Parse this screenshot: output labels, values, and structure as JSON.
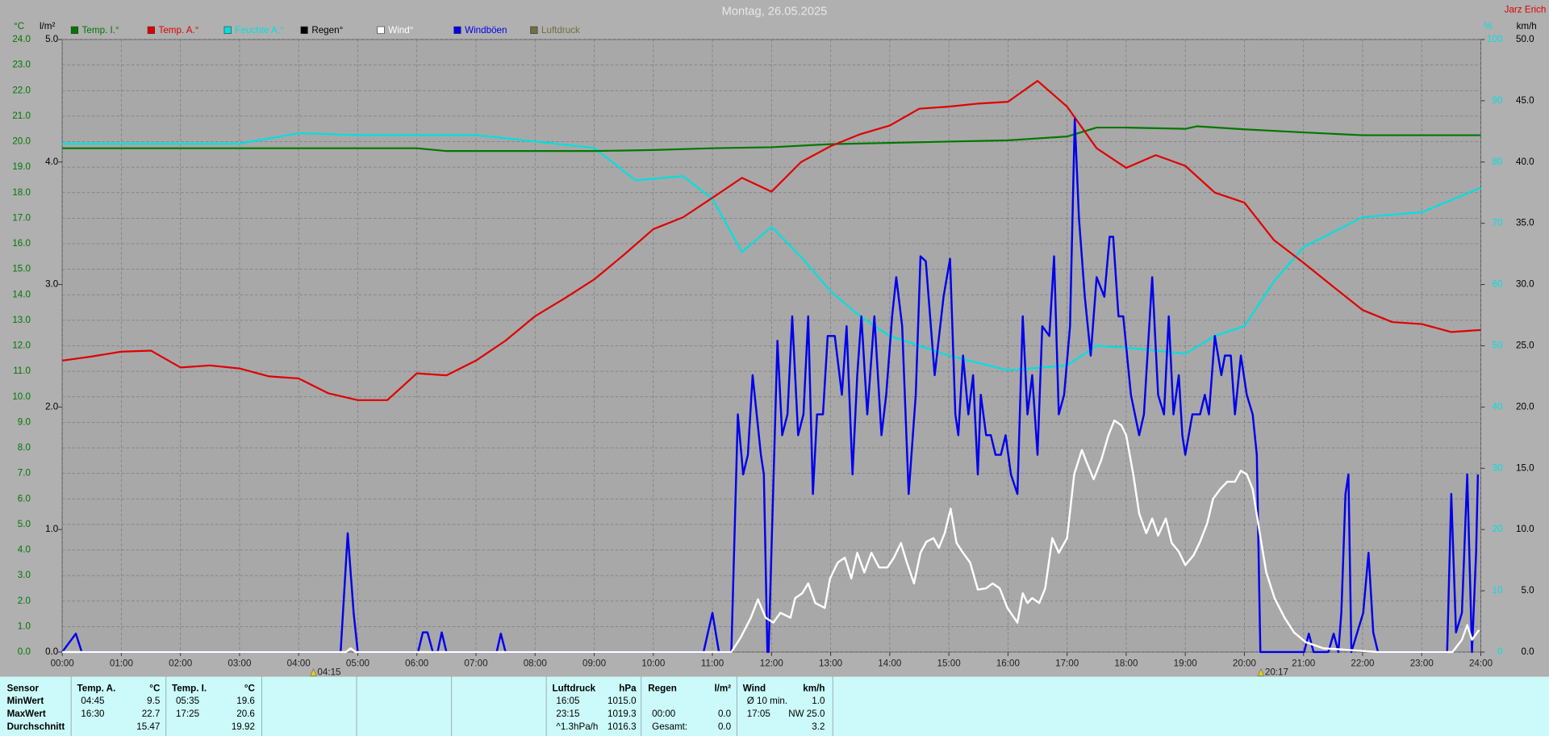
{
  "chart_data": {
    "type": "line",
    "title": "Montag, 26.05.2025",
    "owner": "Jarz Erich",
    "axis_units": {
      "temp": "°C",
      "rain": "l/m²",
      "humidity": "%",
      "wind": "km/h"
    },
    "grid": true,
    "xlim": [
      0,
      24
    ],
    "xticks": [
      {
        "value": 0,
        "label": "00:00"
      },
      {
        "value": 1,
        "label": "01:00"
      },
      {
        "value": 2,
        "label": "02:00"
      },
      {
        "value": 3,
        "label": "03:00"
      },
      {
        "value": 4,
        "label": "04:00"
      },
      {
        "value": 5,
        "label": "05:00"
      },
      {
        "value": 6,
        "label": "06:00"
      },
      {
        "value": 7,
        "label": "07:00"
      },
      {
        "value": 8,
        "label": "08:00"
      },
      {
        "value": 9,
        "label": "09:00"
      },
      {
        "value": 10,
        "label": "10:00"
      },
      {
        "value": 11,
        "label": "11:00"
      },
      {
        "value": 12,
        "label": "12:00"
      },
      {
        "value": 13,
        "label": "13:00"
      },
      {
        "value": 14,
        "label": "14:00"
      },
      {
        "value": 15,
        "label": "15:00"
      },
      {
        "value": 16,
        "label": "16:00"
      },
      {
        "value": 17,
        "label": "17:00"
      },
      {
        "value": 18,
        "label": "18:00"
      },
      {
        "value": 19,
        "label": "19:00"
      },
      {
        "value": 20,
        "label": "20:00"
      },
      {
        "value": 21,
        "label": "21:00"
      },
      {
        "value": 22,
        "label": "22:00"
      },
      {
        "value": 23,
        "label": "23:00"
      },
      {
        "value": 24,
        "label": "24:00"
      }
    ],
    "ylim": [
      0,
      24
    ],
    "yticks": [
      {
        "value": 0,
        "label": "0.0"
      },
      {
        "value": 1,
        "label": "1.0"
      },
      {
        "value": 2,
        "label": "2.0"
      },
      {
        "value": 3,
        "label": "3.0"
      },
      {
        "value": 4,
        "label": "4.0"
      },
      {
        "value": 5,
        "label": "5.0"
      },
      {
        "value": 6,
        "label": "6.0"
      },
      {
        "value": 7,
        "label": "7.0"
      },
      {
        "value": 8,
        "label": "8.0"
      },
      {
        "value": 9,
        "label": "9.0"
      },
      {
        "value": 10,
        "label": "10.0"
      },
      {
        "value": 11,
        "label": "11.0"
      },
      {
        "value": 12,
        "label": "12.0"
      },
      {
        "value": 13,
        "label": "13.0"
      },
      {
        "value": 14,
        "label": "14.0"
      },
      {
        "value": 15,
        "label": "15.0"
      },
      {
        "value": 16,
        "label": "16.0"
      },
      {
        "value": 17,
        "label": "17.0"
      },
      {
        "value": 18,
        "label": "18.0"
      },
      {
        "value": 19,
        "label": "19.0"
      },
      {
        "value": 20,
        "label": "20.0"
      },
      {
        "value": 21,
        "label": "21.0"
      },
      {
        "value": 22,
        "label": "22.0"
      },
      {
        "value": 23,
        "label": "23.0"
      },
      {
        "value": 24,
        "label": "24.0"
      }
    ],
    "y2lim": [
      0,
      5
    ],
    "y2ticks": [
      {
        "value": 0,
        "label": "0.0"
      },
      {
        "value": 1,
        "label": "1.0"
      },
      {
        "value": 2,
        "label": "2.0"
      },
      {
        "value": 3,
        "label": "3.0"
      },
      {
        "value": 4,
        "label": "4.0"
      },
      {
        "value": 5,
        "label": "5.0"
      }
    ],
    "y3lim": [
      0,
      100
    ],
    "y3ticks": [
      0,
      10,
      20,
      30,
      40,
      50,
      60,
      70,
      80,
      90,
      100
    ],
    "y4lim": [
      0,
      50
    ],
    "y4ticks": [
      {
        "value": 0,
        "label": "0.0"
      },
      {
        "value": 5,
        "label": "5.0"
      },
      {
        "value": 10,
        "label": "10.0"
      },
      {
        "value": 15,
        "label": "15.0"
      },
      {
        "value": 20,
        "label": "20.0"
      },
      {
        "value": 25,
        "label": "25.0"
      },
      {
        "value": 30,
        "label": "30.0"
      },
      {
        "value": 35,
        "label": "35.0"
      },
      {
        "value": 40,
        "label": "40.0"
      },
      {
        "value": 45,
        "label": "45.0"
      },
      {
        "value": 50,
        "label": "50.0"
      }
    ],
    "markers": [
      {
        "value": 4.25,
        "label": "04:15"
      },
      {
        "value": 20.28,
        "label": "20:17"
      }
    ],
    "series": [
      {
        "name": "Temp. I.°",
        "color": "#007800",
        "axis": "y",
        "x": [
          0,
          1,
          2,
          3,
          4,
          5,
          6,
          6.5,
          7,
          8,
          9,
          10,
          11,
          12,
          13,
          14,
          15,
          16,
          17,
          17.5,
          18,
          19,
          19.2,
          20,
          21,
          22,
          23,
          24
        ],
        "values": [
          19.74,
          19.74,
          19.74,
          19.74,
          19.74,
          19.74,
          19.74,
          19.63,
          19.63,
          19.63,
          19.63,
          19.67,
          19.74,
          19.78,
          19.9,
          19.95,
          20.0,
          20.05,
          20.2,
          20.55,
          20.55,
          20.5,
          20.6,
          20.48,
          20.36,
          20.25,
          20.25,
          20.25
        ]
      },
      {
        "name": "Temp. A.°",
        "color": "#e00000",
        "axis": "y",
        "x": [
          0,
          0.5,
          1,
          1.5,
          2,
          2.5,
          3,
          3.5,
          4,
          4.5,
          5,
          5.5,
          6,
          6.5,
          7,
          7.5,
          8,
          8.5,
          9,
          9.5,
          10,
          10.5,
          11,
          11.5,
          12,
          12.5,
          13,
          13.5,
          14,
          14.5,
          15,
          15.5,
          16,
          16.5,
          17,
          17.5,
          18,
          18.5,
          19,
          19.5,
          20,
          20.5,
          21,
          21.5,
          22,
          22.5,
          23,
          23.5,
          24
        ],
        "values": [
          11.42,
          11.58,
          11.77,
          11.81,
          11.15,
          11.23,
          11.11,
          10.8,
          10.72,
          10.14,
          9.87,
          9.87,
          10.92,
          10.84,
          11.42,
          12.2,
          13.16,
          13.86,
          14.6,
          15.56,
          16.57,
          17.03,
          17.8,
          18.58,
          18.04,
          19.2,
          19.82,
          20.29,
          20.63,
          21.29,
          21.37,
          21.49,
          21.56,
          22.38,
          21.37,
          19.74,
          18.97,
          19.47,
          19.05,
          18.0,
          17.61,
          16.14,
          15.25,
          14.32,
          13.4,
          12.93,
          12.85,
          12.54,
          12.62
        ]
      },
      {
        "name": "Feuchte A.°",
        "color": "#00e0e0",
        "axis": "y3",
        "x": [
          0,
          3,
          4,
          5,
          7,
          9,
          9.7,
          10.5,
          11,
          11.5,
          12,
          12.5,
          13,
          13.5,
          14,
          15,
          16,
          17,
          17.5,
          18,
          19,
          19.5,
          20,
          20.5,
          21,
          22,
          23,
          24
        ],
        "values": [
          83,
          83,
          84.7,
          84.4,
          84.4,
          82.3,
          77,
          77.7,
          74,
          65.3,
          69.4,
          64.5,
          58.9,
          54.8,
          51.6,
          48.4,
          46,
          46.8,
          50,
          49.7,
          48.7,
          51.6,
          53.2,
          60.5,
          66.1,
          71,
          71.8,
          75.8
        ]
      },
      {
        "name": "Regen°",
        "color": "#000000",
        "axis": "y2"
      },
      {
        "name": "Wind°",
        "color": "#ffffff",
        "axis": "y4",
        "x": [
          0,
          4.8,
          4.88,
          4.96,
          11.32,
          11.48,
          11.65,
          11.77,
          11.9,
          12.03,
          12.15,
          12.32,
          12.4,
          12.52,
          12.62,
          12.74,
          12.9,
          12.99,
          13.12,
          13.24,
          13.35,
          13.45,
          13.57,
          13.69,
          13.82,
          13.96,
          14.07,
          14.19,
          14.29,
          14.41,
          14.52,
          14.62,
          14.74,
          14.83,
          14.93,
          15.03,
          15.13,
          15.24,
          15.36,
          15.49,
          15.63,
          15.74,
          15.86,
          15.99,
          16.16,
          16.25,
          16.33,
          16.41,
          16.53,
          16.63,
          16.75,
          16.86,
          17.0,
          17.12,
          17.25,
          17.33,
          17.45,
          17.58,
          17.7,
          17.8,
          17.92,
          18.0,
          18.12,
          18.22,
          18.34,
          18.44,
          18.54,
          18.67,
          18.77,
          18.89,
          19.0,
          19.14,
          19.25,
          19.37,
          19.47,
          19.59,
          19.71,
          19.84,
          19.94,
          20.04,
          20.14,
          20.26,
          20.37,
          20.51,
          20.68,
          20.84,
          21.04,
          21.34,
          21.68,
          22.26,
          23.52,
          23.68,
          23.77,
          23.85,
          23.97
        ],
        "values": [
          0,
          0,
          0.3,
          0,
          0,
          1.2,
          2.8,
          4.3,
          2.8,
          2.4,
          3.2,
          2.8,
          4.4,
          4.8,
          5.6,
          4.0,
          3.6,
          6.0,
          7.3,
          7.7,
          6.0,
          8.1,
          6.5,
          8.1,
          6.9,
          6.9,
          7.7,
          8.9,
          7.3,
          5.6,
          8.1,
          9.0,
          9.3,
          8.5,
          9.7,
          11.7,
          8.9,
          8.1,
          7.3,
          5.1,
          5.2,
          5.6,
          5.2,
          3.6,
          2.4,
          4.8,
          4.0,
          4.4,
          4.0,
          5.2,
          9.3,
          8.1,
          9.3,
          14.5,
          16.5,
          15.5,
          14.1,
          15.7,
          17.7,
          18.9,
          18.5,
          17.7,
          14.5,
          11.3,
          9.7,
          10.9,
          9.5,
          10.9,
          8.9,
          8.2,
          7.1,
          7.9,
          9.0,
          10.5,
          12.5,
          13.3,
          13.9,
          13.9,
          14.8,
          14.5,
          13.3,
          9.7,
          6.5,
          4.4,
          2.8,
          1.6,
          0.8,
          0.3,
          0.2,
          0,
          0,
          1.0,
          2.2,
          1.0,
          1.8
        ]
      },
      {
        "name": "Windböen",
        "color": "#0000ee",
        "axis": "y4",
        "x": [
          0,
          0.23,
          0.33,
          4.71,
          4.83,
          4.93,
          5.0,
          6.02,
          6.1,
          6.18,
          6.27,
          6.35,
          6.42,
          6.5,
          7.35,
          7.42,
          7.5,
          10.85,
          11.0,
          11.11,
          11.32,
          11.43,
          11.52,
          11.6,
          11.68,
          11.82,
          11.87,
          11.93,
          11.95,
          12.1,
          12.18,
          12.27,
          12.35,
          12.45,
          12.54,
          12.62,
          12.7,
          12.77,
          12.87,
          12.95,
          13.07,
          13.19,
          13.27,
          13.37,
          13.45,
          13.52,
          13.62,
          13.74,
          13.86,
          13.94,
          14.04,
          14.11,
          14.21,
          14.32,
          14.44,
          14.52,
          14.61,
          14.76,
          14.91,
          15.02,
          15.11,
          15.16,
          15.24,
          15.33,
          15.41,
          15.49,
          15.54,
          15.63,
          15.71,
          15.79,
          15.88,
          15.96,
          16.05,
          16.16,
          16.25,
          16.33,
          16.41,
          16.5,
          16.58,
          16.7,
          16.78,
          16.86,
          16.95,
          17.05,
          17.13,
          17.2,
          17.3,
          17.4,
          17.5,
          17.63,
          17.72,
          17.78,
          17.87,
          17.95,
          18.08,
          18.22,
          18.3,
          18.44,
          18.54,
          18.64,
          18.72,
          18.8,
          18.89,
          18.95,
          19.0,
          19.12,
          19.25,
          19.33,
          19.4,
          19.5,
          19.61,
          19.67,
          19.77,
          19.84,
          19.94,
          20.04,
          20.14,
          20.21,
          20.27,
          21.01,
          21.09,
          21.17,
          21.42,
          21.51,
          21.59,
          21.64,
          21.71,
          21.76,
          21.81,
          22.01,
          22.1,
          22.18,
          22.26,
          23.43,
          23.5,
          23.58,
          23.68,
          23.77,
          23.85,
          23.92,
          23.95
        ],
        "values": [
          0,
          1.5,
          0,
          0,
          9.7,
          3.2,
          0,
          0,
          1.6,
          1.6,
          0,
          0,
          1.6,
          0,
          0,
          1.5,
          0,
          0,
          3.2,
          0,
          0,
          19.4,
          14.5,
          16.1,
          22.6,
          16.1,
          14.5,
          0,
          0,
          25.4,
          17.7,
          19.4,
          27.4,
          17.7,
          19.4,
          27.4,
          12.9,
          19.4,
          19.4,
          25.8,
          25.8,
          21,
          26.6,
          14.5,
          22.6,
          27.4,
          19.4,
          27.4,
          17.7,
          21,
          27.4,
          30.6,
          26.6,
          12.9,
          21,
          32.3,
          31.9,
          22.6,
          29,
          32.1,
          19.4,
          17.7,
          24.2,
          19.4,
          22.6,
          14.5,
          21,
          17.7,
          17.7,
          16.1,
          16.1,
          17.7,
          14.5,
          12.9,
          27.4,
          19.4,
          22.6,
          16.1,
          26.6,
          25.8,
          32.3,
          19.4,
          21,
          26.6,
          43.5,
          35.5,
          29,
          24.2,
          30.6,
          29,
          33.9,
          33.9,
          27.4,
          27.4,
          21,
          17.7,
          19.4,
          30.6,
          21,
          19.4,
          27.4,
          19.4,
          22.6,
          17.7,
          16.1,
          19.4,
          19.4,
          21,
          19.4,
          25.8,
          22.6,
          24.2,
          24.2,
          19.4,
          24.2,
          21,
          19.4,
          16.1,
          0,
          0,
          1.5,
          0,
          0,
          1.5,
          0,
          3.2,
          12.9,
          14.5,
          0,
          3.2,
          8.1,
          1.6,
          0,
          0,
          12.9,
          1.6,
          3.2,
          14.5,
          0,
          8.1,
          14.5
        ]
      },
      {
        "name": "Luftdruck",
        "color": "#707040",
        "axis": "y"
      }
    ]
  },
  "table": {
    "header": [
      "Sensor",
      "Temp. A.",
      "°C",
      "Temp. I.",
      "°C",
      "Luftdruck",
      "hPa",
      "Regen",
      "l/m²",
      "Wind",
      "km/h"
    ],
    "rows": [
      [
        "MinWert",
        "04:45",
        "9.5",
        "05:35",
        "19.6",
        "16:05",
        "1015.0",
        null,
        null,
        "Ø 10 min.",
        "1.0"
      ],
      [
        "MaxWert",
        "16:30",
        "22.7",
        "17:25",
        "20.6",
        "23:15",
        "1019.3",
        "00:00",
        "0.0",
        "17:05",
        "NW 25.0"
      ],
      [
        "Durchschnitt",
        null,
        "15.47",
        null,
        "19.92",
        "^1.3hPa/h",
        "1016.3",
        "Gesamt:",
        "0.0",
        null,
        "3.2"
      ]
    ]
  }
}
